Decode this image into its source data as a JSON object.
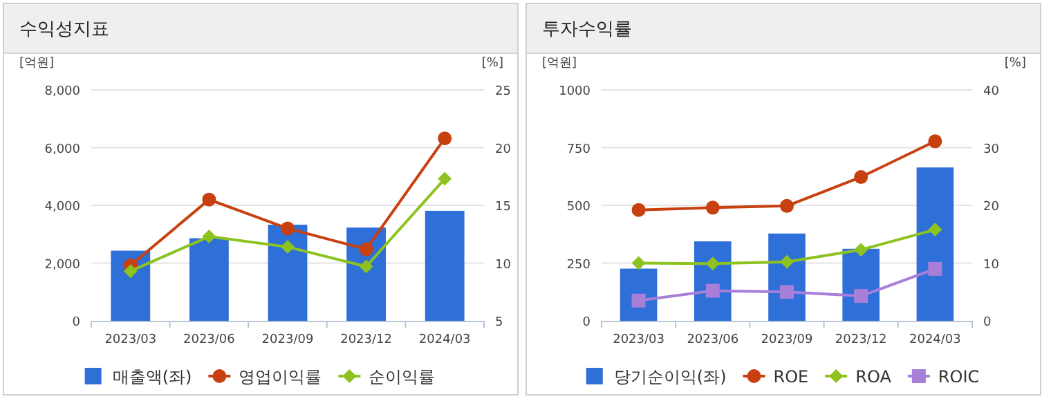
{
  "chart_data": [
    {
      "type": "bar",
      "title": "수익성지표",
      "ylabel": "[억원]",
      "y2label": "[%]",
      "categories": [
        "2023/03",
        "2023/06",
        "2023/09",
        "2023/12",
        "2024/03"
      ],
      "series": [
        {
          "name": "매출액(좌)",
          "color": "#2f6fd8",
          "values": [
            2430,
            2860,
            3330,
            3230,
            3810
          ]
        },
        {
          "name": "영업이익률",
          "type": "line",
          "axis": "y2",
          "marker": "circle",
          "color": "#c8400f",
          "values": [
            9.8,
            15.5,
            13.0,
            11.2,
            20.8
          ]
        },
        {
          "name": "순이익률",
          "type": "line",
          "axis": "y2",
          "marker": "diamond",
          "color": "#8dc21f",
          "values": [
            9.3,
            12.3,
            11.4,
            9.7,
            17.3
          ]
        }
      ],
      "ylim": [
        0,
        8000
      ],
      "yticks": [
        0,
        {
          "value": 2000,
          "label": "2,000"
        },
        {
          "value": 4000,
          "label": "4,000"
        },
        {
          "value": 6000,
          "label": "6,000"
        },
        {
          "value": 8000,
          "label": "8,000"
        }
      ],
      "y2lim": [
        5,
        25
      ],
      "y2ticks": [
        5,
        10,
        15,
        20,
        25
      ],
      "grid": "y",
      "legend": "bottom"
    },
    {
      "type": "bar",
      "title": "투자수익률",
      "ylabel": "[억원]",
      "y2label": "[%]",
      "categories": [
        "2023/03",
        "2023/06",
        "2023/09",
        "2023/12",
        "2024/03"
      ],
      "series": [
        {
          "name": "당기순이익(좌)",
          "color": "#2f6fd8",
          "values": [
            226,
            344,
            378,
            312,
            664
          ]
        },
        {
          "name": "ROE",
          "type": "line",
          "axis": "y2",
          "marker": "circle",
          "color": "#c8400f",
          "values": [
            19.2,
            19.6,
            19.9,
            24.9,
            31.1
          ]
        },
        {
          "name": "ROA",
          "type": "line",
          "axis": "y2",
          "marker": "diamond",
          "color": "#8dc21f",
          "values": [
            10.0,
            9.9,
            10.2,
            12.3,
            15.8
          ]
        },
        {
          "name": "ROIC",
          "type": "line",
          "axis": "y2",
          "marker": "square",
          "color": "#a77fd8",
          "values": [
            3.5,
            5.2,
            5.0,
            4.3,
            9.0
          ]
        }
      ],
      "ylim": [
        0,
        1000
      ],
      "yticks": [
        0,
        250,
        500,
        750,
        1000
      ],
      "y2lim": [
        0,
        40
      ],
      "y2ticks": [
        0,
        10,
        20,
        30,
        40
      ],
      "grid": "y",
      "legend": "bottom"
    }
  ]
}
